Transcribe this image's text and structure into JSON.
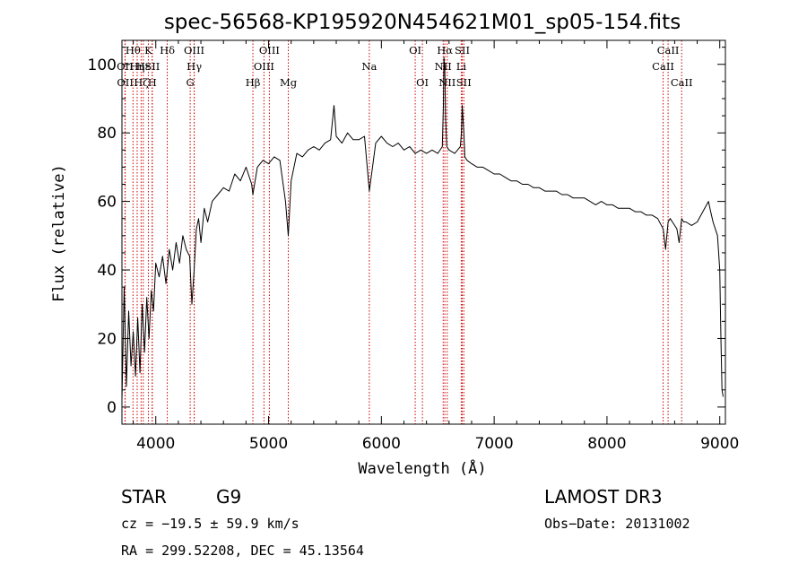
{
  "chart_data": {
    "type": "line",
    "title": "spec-56568-KP195920N454621M01_sp05-154.fits",
    "xlabel": "Wavelength (Å)",
    "ylabel": "Flux (relative)",
    "xlim": [
      3700,
      9050
    ],
    "ylim": [
      -5,
      107
    ],
    "xticks": [
      4000,
      5000,
      6000,
      7000,
      8000,
      9000
    ],
    "yticks": [
      0,
      20,
      40,
      60,
      80,
      100
    ],
    "series": [
      {
        "name": "flux",
        "x": [
          3700,
          3720,
          3740,
          3760,
          3780,
          3800,
          3820,
          3840,
          3860,
          3880,
          3900,
          3920,
          3940,
          3960,
          3980,
          4000,
          4030,
          4060,
          4090,
          4120,
          4150,
          4180,
          4210,
          4240,
          4270,
          4300,
          4320,
          4340,
          4360,
          4380,
          4400,
          4430,
          4460,
          4500,
          4550,
          4600,
          4650,
          4700,
          4750,
          4800,
          4850,
          4861,
          4900,
          4950,
          5000,
          5050,
          5100,
          5150,
          5175,
          5200,
          5250,
          5300,
          5350,
          5400,
          5450,
          5500,
          5550,
          5580,
          5600,
          5650,
          5700,
          5750,
          5800,
          5850,
          5893,
          5950,
          6000,
          6050,
          6100,
          6150,
          6200,
          6250,
          6300,
          6350,
          6400,
          6450,
          6500,
          6540,
          6550,
          6555,
          6563,
          6570,
          6580,
          6600,
          6650,
          6700,
          6710,
          6717,
          6724,
          6731,
          6740,
          6760,
          6800,
          6850,
          6900,
          6950,
          7000,
          7050,
          7100,
          7150,
          7200,
          7250,
          7300,
          7350,
          7400,
          7450,
          7500,
          7550,
          7600,
          7650,
          7700,
          7750,
          7800,
          7850,
          7900,
          7950,
          8000,
          8050,
          8100,
          8150,
          8200,
          8250,
          8300,
          8350,
          8400,
          8450,
          8498,
          8520,
          8542,
          8560,
          8580,
          8600,
          8620,
          8640,
          8662,
          8680,
          8700,
          8750,
          8800,
          8850,
          8900,
          8920,
          8940,
          8960,
          8980,
          9000,
          9010,
          9020,
          9030
        ],
        "values": [
          2,
          35,
          6,
          28,
          12,
          22,
          9,
          26,
          10,
          30,
          16,
          32,
          20,
          34,
          28,
          42,
          38,
          44,
          36,
          46,
          40,
          48,
          42,
          50,
          46,
          44,
          30,
          40,
          52,
          55,
          48,
          58,
          54,
          60,
          62,
          64,
          63,
          68,
          66,
          70,
          65,
          62,
          70,
          72,
          71,
          73,
          72,
          60,
          50,
          66,
          74,
          73,
          75,
          76,
          75,
          77,
          78,
          88,
          79,
          77,
          80,
          78,
          78,
          79,
          63,
          77,
          79,
          77,
          76,
          77,
          75,
          76,
          74,
          75,
          74,
          75,
          74,
          76,
          88,
          102,
          98,
          84,
          76,
          75,
          74,
          76,
          80,
          88,
          84,
          80,
          73,
          72,
          71,
          70,
          70,
          69,
          68,
          68,
          67,
          66,
          66,
          65,
          65,
          64,
          64,
          63,
          63,
          63,
          62,
          62,
          61,
          61,
          61,
          60,
          59,
          60,
          59,
          59,
          58,
          58,
          58,
          57,
          57,
          56,
          56,
          55,
          52,
          46,
          54,
          55,
          54,
          53,
          52,
          48,
          55,
          54,
          54,
          53,
          54,
          57,
          60,
          57,
          54,
          52,
          50,
          40,
          20,
          5,
          3
        ]
      }
    ],
    "lines": [
      {
        "name": "Hθ",
        "x": 3798,
        "row": 0
      },
      {
        "name": "OII",
        "x": 3727,
        "row": 1
      },
      {
        "name": "OII",
        "x": 3729,
        "row": 2
      },
      {
        "name": "Hη",
        "x": 3835,
        "row": 1
      },
      {
        "name": "Hε",
        "x": 3889,
        "row": 1
      },
      {
        "name": "Hζ",
        "x": 3870,
        "row": 2
      },
      {
        "name": "K",
        "x": 3934,
        "row": 0
      },
      {
        "name": "SII",
        "x": 3969,
        "row": 1
      },
      {
        "name": "H",
        "x": 3968,
        "row": 2
      },
      {
        "name": "Hδ",
        "x": 4102,
        "row": 0
      },
      {
        "name": "OIII",
        "x": 4340,
        "row": 0
      },
      {
        "name": "Hγ",
        "x": 4341,
        "row": 1
      },
      {
        "name": "G",
        "x": 4305,
        "row": 2
      },
      {
        "name": "Hβ",
        "x": 4861,
        "row": 2
      },
      {
        "name": "OIII",
        "x": 5007,
        "row": 0
      },
      {
        "name": "OIII",
        "x": 4959,
        "row": 1
      },
      {
        "name": "Mg",
        "x": 5175,
        "row": 2
      },
      {
        "name": "Na",
        "x": 5893,
        "row": 1
      },
      {
        "name": "OI",
        "x": 6300,
        "row": 0
      },
      {
        "name": "OI",
        "x": 6364,
        "row": 2
      },
      {
        "name": "Hα",
        "x": 6563,
        "row": 0
      },
      {
        "name": "NII",
        "x": 6548,
        "row": 1
      },
      {
        "name": "NII",
        "x": 6584,
        "row": 2
      },
      {
        "name": "SII",
        "x": 6717,
        "row": 0
      },
      {
        "name": "Li",
        "x": 6708,
        "row": 1
      },
      {
        "name": "SII",
        "x": 6731,
        "row": 2
      },
      {
        "name": "CaII",
        "x": 8542,
        "row": 0
      },
      {
        "name": "CaII",
        "x": 8498,
        "row": 1
      },
      {
        "name": "CaII",
        "x": 8662,
        "row": 2
      }
    ],
    "colors": {
      "line_marker": "#cc0000",
      "spectrum": "#000000",
      "axes": "#000000"
    }
  },
  "info": {
    "object_class": "STAR",
    "subclass": "G9",
    "survey": "LAMOST DR3",
    "cz": "cz = −19.5 ± 59.9 km/s",
    "obs_date": "Obs−Date: 20131002",
    "coords": "RA = 299.52208, DEC =  45.13564"
  }
}
